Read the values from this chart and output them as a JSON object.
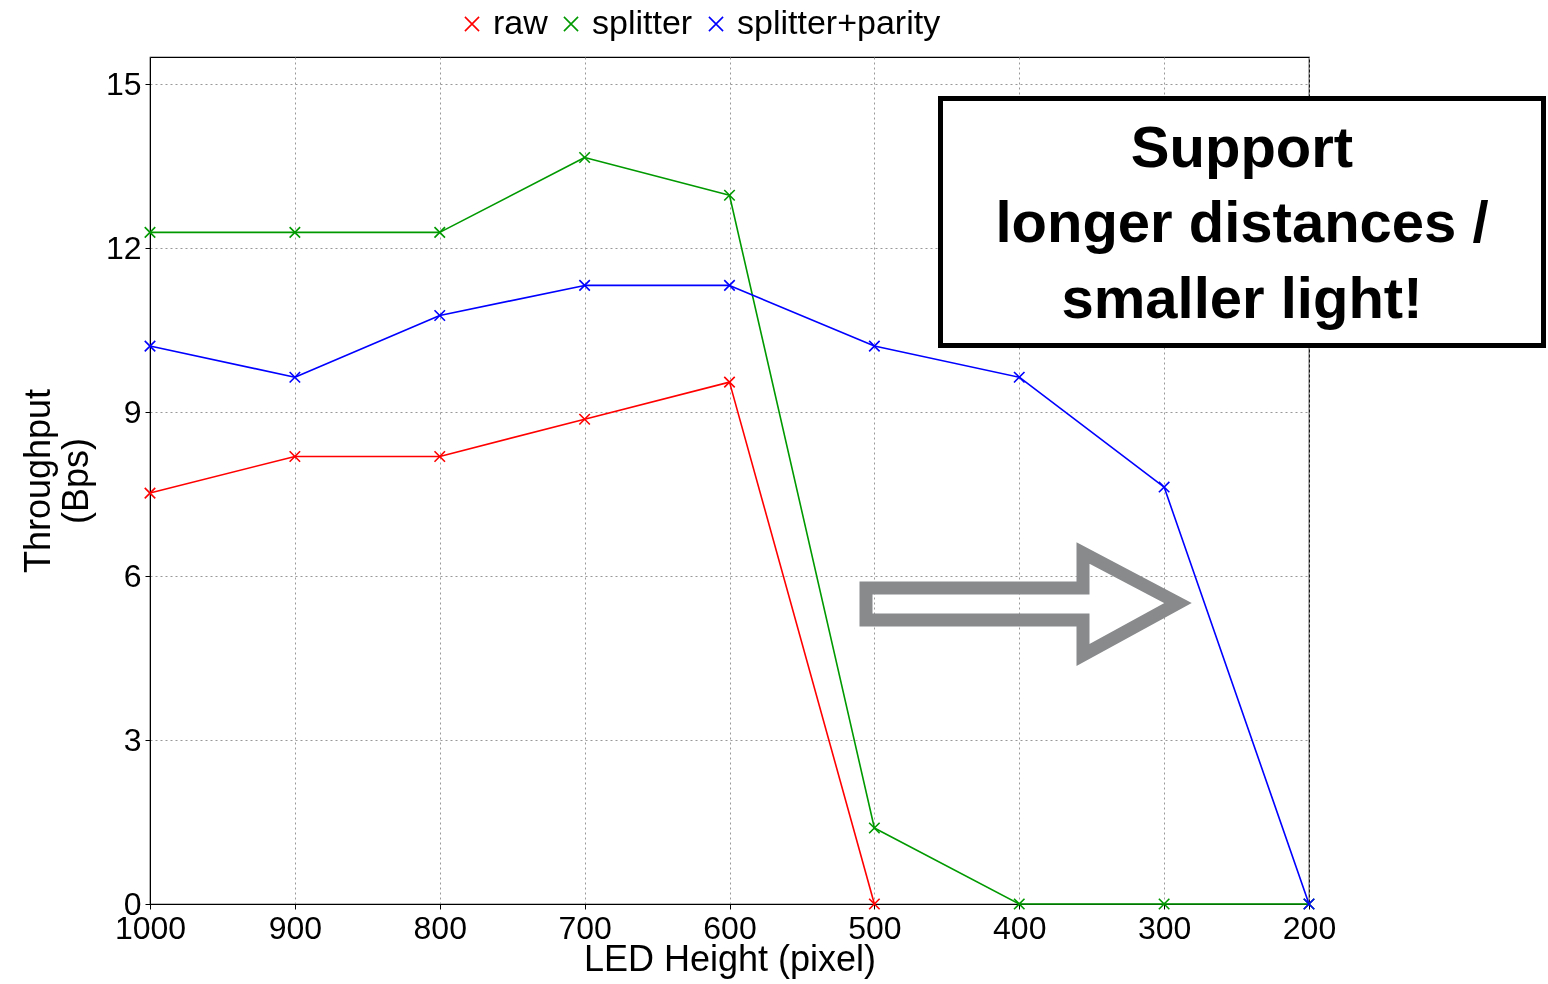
{
  "chart_data": {
    "type": "line",
    "xlabel": "LED Height (pixel)",
    "ylabel": "Throughput\n(Bps)",
    "x": [
      1000,
      900,
      800,
      700,
      600,
      500,
      400,
      300,
      200
    ],
    "xlim": [
      1000,
      200
    ],
    "xticks": [
      1000,
      900,
      800,
      700,
      600,
      500,
      400,
      300,
      200
    ],
    "ylim": [
      0,
      15.5
    ],
    "yticks": [
      0,
      3,
      6,
      9,
      12,
      15
    ],
    "grid": true,
    "legend": "top",
    "marker": "cross",
    "line_style": "solid",
    "series": [
      {
        "name": "raw",
        "color": "#ff0000",
        "values": [
          7.52,
          8.19,
          8.19,
          8.87,
          9.55,
          0,
          null,
          null,
          null
        ]
      },
      {
        "name": "splitter",
        "color": "#009900",
        "values": [
          12.29,
          12.29,
          12.29,
          13.66,
          12.97,
          1.39,
          0,
          0,
          0
        ]
      },
      {
        "name": "splitter+parity",
        "color": "#0000ff",
        "values": [
          10.21,
          9.64,
          10.77,
          11.32,
          11.32,
          10.21,
          9.64,
          7.63,
          0
        ]
      }
    ],
    "annotations": [
      "Support\nlonger distances /\nsmaller light!"
    ]
  }
}
